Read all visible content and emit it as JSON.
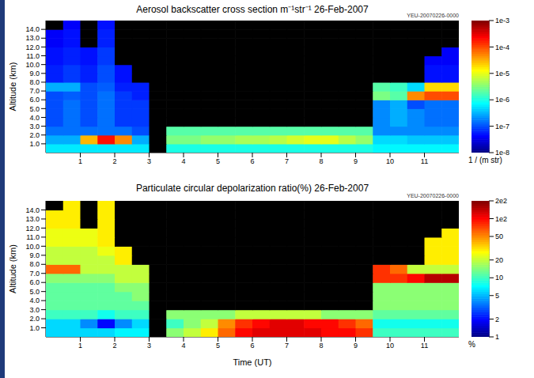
{
  "chart_data": [
    {
      "type": "heatmap",
      "title": "Aerosol backscatter cross section m⁻¹str⁻¹  26-Feb-2007",
      "annotation": "YEU-20070226-0000",
      "y_label": "Altitude (km)",
      "xlim": [
        0,
        12
      ],
      "xticks": [
        1,
        2,
        3,
        4,
        5,
        6,
        7,
        8,
        9,
        10,
        11
      ],
      "ylim": [
        0,
        15
      ],
      "yticks": [
        {
          "value": 1,
          "label": "1.0"
        },
        {
          "value": 2,
          "label": "2.0"
        },
        {
          "value": 3,
          "label": "3.0"
        },
        {
          "value": 4,
          "label": "4.0"
        },
        {
          "value": 5,
          "label": "5.0"
        },
        {
          "value": 6,
          "label": "6.0"
        },
        {
          "value": 7,
          "label": "7.0"
        },
        {
          "value": 8,
          "label": "8.0"
        },
        {
          "value": 9,
          "label": "9.0"
        },
        {
          "value": 10,
          "label": "10.0"
        },
        {
          "value": 11,
          "label": "11.0"
        },
        {
          "value": 12,
          "label": "12.0"
        },
        {
          "value": 13,
          "label": "13.0"
        },
        {
          "value": 14,
          "label": "14.0"
        }
      ],
      "xbins": [
        0,
        0.5,
        1,
        1.5,
        2,
        2.5,
        3,
        3.5,
        4,
        4.5,
        5,
        5.5,
        6,
        6.5,
        7,
        7.5,
        8,
        8.5,
        9,
        9.5,
        10,
        10.5,
        11,
        11.5,
        12
      ],
      "ybins": [
        0,
        1,
        2,
        3,
        4,
        5,
        6,
        7,
        8,
        9,
        10,
        11,
        12,
        13,
        14,
        15
      ],
      "cells": [
        [
          6e-07,
          6e-07,
          6e-07,
          6e-07,
          6e-07,
          6e-07,
          null,
          1e-06,
          1e-06,
          1e-06,
          1e-06,
          1e-06,
          1e-06,
          1e-06,
          1e-06,
          1e-06,
          1e-06,
          1e-06,
          1e-06,
          7e-07,
          7e-07,
          7e-07,
          7e-07,
          7e-07
        ],
        [
          3e-07,
          3e-07,
          3e-05,
          0.0002,
          5e-05,
          3e-07,
          null,
          3e-06,
          3e-06,
          4e-06,
          4e-06,
          5e-06,
          5e-06,
          6e-06,
          8e-06,
          1e-05,
          1e-05,
          6e-06,
          4e-06,
          5e-07,
          5e-07,
          4e-07,
          4e-07,
          4e-07
        ],
        [
          1.5e-07,
          1.5e-07,
          1.5e-07,
          1.5e-07,
          1.5e-07,
          1e-07,
          null,
          2e-06,
          2e-06,
          2e-06,
          2e-06,
          2e-06,
          2e-06,
          2e-06,
          2e-06,
          2e-06,
          2e-06,
          2e-06,
          2e-06,
          2e-07,
          2e-07,
          2e-07,
          2e-07,
          2e-07
        ],
        [
          1e-07,
          1.5e-07,
          1e-07,
          1.5e-07,
          8e-08,
          8e-08,
          null,
          null,
          null,
          null,
          null,
          null,
          null,
          null,
          null,
          null,
          null,
          null,
          null,
          2e-07,
          3e-07,
          2e-07,
          1.5e-07,
          1.5e-07
        ],
        [
          1e-07,
          1.5e-07,
          1e-07,
          1.5e-07,
          8e-08,
          8e-08,
          null,
          null,
          null,
          null,
          null,
          null,
          null,
          null,
          null,
          null,
          null,
          null,
          null,
          2e-07,
          3e-07,
          2e-07,
          1.5e-07,
          1.5e-07
        ],
        [
          1e-07,
          1.5e-07,
          1e-07,
          1.5e-07,
          8e-08,
          8e-08,
          null,
          null,
          null,
          null,
          null,
          null,
          null,
          null,
          null,
          null,
          null,
          null,
          null,
          2e-07,
          3e-07,
          1e-07,
          1.5e-07,
          1.5e-07
        ],
        [
          1e-07,
          1.2e-07,
          1e-07,
          1.5e-07,
          8e-08,
          6e-08,
          null,
          null,
          null,
          null,
          null,
          null,
          null,
          null,
          null,
          null,
          null,
          null,
          null,
          3e-06,
          2e-06,
          5e-05,
          0.0001,
          0.0001
        ],
        [
          3e-07,
          3e-07,
          1e-07,
          1.2e-07,
          6e-08,
          6e-08,
          null,
          null,
          null,
          null,
          null,
          null,
          null,
          null,
          null,
          null,
          null,
          null,
          null,
          2e-06,
          1.5e-06,
          5e-07,
          2e-05,
          2e-05
        ],
        [
          6e-08,
          8e-08,
          6e-08,
          1e-07,
          5e-08,
          null,
          null,
          null,
          null,
          null,
          null,
          null,
          null,
          null,
          null,
          null,
          null,
          null,
          null,
          null,
          null,
          null,
          5e-08,
          5e-08
        ],
        [
          6e-08,
          8e-08,
          6e-08,
          1e-07,
          5e-08,
          null,
          null,
          null,
          null,
          null,
          null,
          null,
          null,
          null,
          null,
          null,
          null,
          null,
          null,
          null,
          null,
          null,
          5e-08,
          5e-08
        ],
        [
          5e-08,
          6e-08,
          5e-08,
          8e-08,
          null,
          null,
          null,
          null,
          null,
          null,
          null,
          null,
          null,
          null,
          null,
          null,
          null,
          null,
          null,
          null,
          null,
          null,
          4e-08,
          4e-08
        ],
        [
          5e-08,
          6e-08,
          5e-08,
          8e-08,
          null,
          null,
          null,
          null,
          null,
          null,
          null,
          null,
          null,
          null,
          null,
          null,
          null,
          null,
          null,
          null,
          null,
          null,
          null,
          4e-08
        ],
        [
          4e-08,
          5e-08,
          null,
          6e-08,
          null,
          null,
          null,
          null,
          null,
          null,
          null,
          null,
          null,
          null,
          null,
          null,
          null,
          null,
          null,
          null,
          null,
          null,
          null,
          null
        ],
        [
          4e-08,
          5e-08,
          null,
          6e-08,
          null,
          null,
          null,
          null,
          null,
          null,
          null,
          null,
          null,
          null,
          null,
          null,
          null,
          null,
          null,
          null,
          null,
          null,
          null,
          null
        ],
        [
          null,
          4e-08,
          null,
          5e-08,
          null,
          null,
          null,
          null,
          null,
          null,
          null,
          null,
          null,
          null,
          null,
          null,
          null,
          null,
          null,
          null,
          null,
          null,
          null,
          null
        ]
      ],
      "colorbar": {
        "label": "1 / (m str)",
        "log": true,
        "lim": [
          1e-08,
          0.001
        ],
        "ticks": [
          {
            "value": 1e-08,
            "label": "1e-8"
          },
          {
            "value": 1e-07,
            "label": "1e-7"
          },
          {
            "value": 1e-06,
            "label": "1e-6"
          },
          {
            "value": 1e-05,
            "label": "1e-5"
          },
          {
            "value": 0.0001,
            "label": "1e-4"
          },
          {
            "value": 0.001,
            "label": "1e-3"
          }
        ]
      }
    },
    {
      "type": "heatmap",
      "title": "Particulate circular depolarization ratio(%)  26-Feb-2007",
      "annotation": "YEU-20070226-0000",
      "x_label": "Time (UT)",
      "y_label": "Altitude (km)",
      "xlim": [
        0,
        12
      ],
      "xticks": [
        1,
        2,
        3,
        4,
        5,
        6,
        7,
        8,
        9,
        10,
        11
      ],
      "ylim": [
        0,
        15
      ],
      "yticks": [
        {
          "value": 1,
          "label": "1.0"
        },
        {
          "value": 2,
          "label": "2.0"
        },
        {
          "value": 3,
          "label": "3.0"
        },
        {
          "value": 4,
          "label": "4.0"
        },
        {
          "value": 5,
          "label": "5.0"
        },
        {
          "value": 6,
          "label": "6.0"
        },
        {
          "value": 7,
          "label": "7.0"
        },
        {
          "value": 8,
          "label": "8.0"
        },
        {
          "value": 9,
          "label": "9.0"
        },
        {
          "value": 10,
          "label": "10.0"
        },
        {
          "value": 11,
          "label": "11.0"
        },
        {
          "value": 12,
          "label": "12.0"
        },
        {
          "value": 13,
          "label": "13.0"
        },
        {
          "value": 14,
          "label": "14.0"
        }
      ],
      "xbins": [
        0,
        0.5,
        1,
        1.5,
        2,
        2.5,
        3,
        3.5,
        4,
        4.5,
        5,
        5.5,
        6,
        6.5,
        7,
        7.5,
        8,
        8.5,
        9,
        9.5,
        10,
        10.5,
        11,
        11.5,
        12
      ],
      "ybins": [
        0,
        1,
        2,
        3,
        4,
        5,
        6,
        7,
        8,
        9,
        10,
        11,
        12,
        13,
        14,
        15
      ],
      "cells": [
        [
          6,
          6,
          6,
          6,
          7,
          7,
          null,
          15,
          20,
          30,
          60,
          100,
          120,
          120,
          120,
          120,
          100,
          100,
          80,
          10,
          10,
          10,
          10,
          10
        ],
        [
          6,
          6,
          4,
          2,
          4,
          6,
          null,
          10,
          15,
          20,
          50,
          80,
          100,
          120,
          120,
          100,
          100,
          80,
          60,
          8,
          8,
          8,
          8,
          8
        ],
        [
          10,
          10,
          10,
          8,
          10,
          10,
          null,
          15,
          15,
          15,
          15,
          20,
          20,
          20,
          20,
          20,
          15,
          15,
          15,
          12,
          12,
          12,
          12,
          12
        ],
        [
          12,
          12,
          12,
          12,
          12,
          12,
          null,
          null,
          null,
          null,
          null,
          null,
          null,
          null,
          null,
          null,
          null,
          null,
          null,
          15,
          15,
          15,
          15,
          15
        ],
        [
          12,
          12,
          12,
          12,
          12,
          15,
          null,
          null,
          null,
          null,
          null,
          null,
          null,
          null,
          null,
          null,
          null,
          null,
          null,
          15,
          15,
          15,
          15,
          15
        ],
        [
          12,
          12,
          12,
          12,
          15,
          15,
          null,
          null,
          null,
          null,
          null,
          null,
          null,
          null,
          null,
          null,
          null,
          null,
          null,
          15,
          15,
          15,
          15,
          15
        ],
        [
          15,
          15,
          15,
          15,
          20,
          20,
          null,
          null,
          null,
          null,
          null,
          null,
          null,
          null,
          null,
          null,
          null,
          null,
          null,
          80,
          80,
          100,
          150,
          150
        ],
        [
          60,
          60,
          20,
          20,
          20,
          20,
          null,
          null,
          null,
          null,
          null,
          null,
          null,
          null,
          null,
          null,
          null,
          null,
          null,
          80,
          60,
          20,
          20,
          20
        ],
        [
          20,
          20,
          20,
          20,
          30,
          null,
          null,
          null,
          null,
          null,
          null,
          null,
          null,
          null,
          null,
          null,
          null,
          null,
          null,
          null,
          null,
          null,
          30,
          30
        ],
        [
          20,
          20,
          20,
          25,
          30,
          null,
          null,
          null,
          null,
          null,
          null,
          null,
          null,
          null,
          null,
          null,
          null,
          null,
          null,
          null,
          null,
          null,
          30,
          30
        ],
        [
          25,
          25,
          25,
          30,
          null,
          null,
          null,
          null,
          null,
          null,
          null,
          null,
          null,
          null,
          null,
          null,
          null,
          null,
          null,
          null,
          null,
          null,
          30,
          30
        ],
        [
          25,
          25,
          25,
          30,
          null,
          null,
          null,
          null,
          null,
          null,
          null,
          null,
          null,
          null,
          null,
          null,
          null,
          null,
          null,
          null,
          null,
          null,
          null,
          30
        ],
        [
          30,
          30,
          null,
          30,
          null,
          null,
          null,
          null,
          null,
          null,
          null,
          null,
          null,
          null,
          null,
          null,
          null,
          null,
          null,
          null,
          null,
          null,
          null,
          null
        ],
        [
          30,
          30,
          null,
          30,
          null,
          null,
          null,
          null,
          null,
          null,
          null,
          null,
          null,
          null,
          null,
          null,
          null,
          null,
          null,
          null,
          null,
          null,
          null,
          null
        ],
        [
          null,
          30,
          null,
          30,
          null,
          null,
          null,
          null,
          null,
          null,
          null,
          null,
          null,
          null,
          null,
          null,
          null,
          null,
          null,
          null,
          null,
          null,
          null,
          null
        ]
      ],
      "colorbar": {
        "label": "%",
        "log": true,
        "lim": [
          1,
          200
        ],
        "ticks": [
          1,
          2,
          5,
          10,
          20,
          50,
          {
            "value": 100,
            "label": "1e2"
          },
          {
            "value": 200,
            "label": "2e2"
          }
        ]
      }
    }
  ]
}
